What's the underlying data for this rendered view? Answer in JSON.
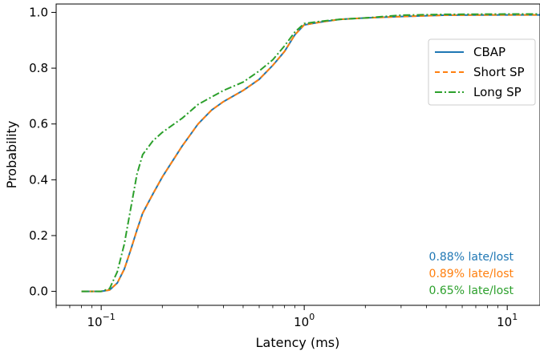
{
  "chart_data": {
    "type": "line",
    "xlabel": "Latency (ms)",
    "ylabel": "Probability",
    "xscale": "log",
    "xlim": [
      0.06,
      14.5
    ],
    "ylim": [
      -0.05,
      1.03
    ],
    "grid": false,
    "legend_position": "upper-right",
    "x_ticks": [
      {
        "value": 0.1,
        "base": "10",
        "exp": "−1"
      },
      {
        "value": 1,
        "base": "10",
        "exp": "0"
      },
      {
        "value": 10,
        "base": "10",
        "exp": "1"
      }
    ],
    "y_ticks": [
      {
        "value": 0.0,
        "label": "0.0"
      },
      {
        "value": 0.2,
        "label": "0.2"
      },
      {
        "value": 0.4,
        "label": "0.4"
      },
      {
        "value": 0.6,
        "label": "0.6"
      },
      {
        "value": 0.8,
        "label": "0.8"
      },
      {
        "value": 1.0,
        "label": "1.0"
      }
    ],
    "series": [
      {
        "name": "CBAP",
        "color": "#1f77b4",
        "style": "solid",
        "points": [
          [
            0.08,
            0
          ],
          [
            0.1,
            0
          ],
          [
            0.11,
            0.005
          ],
          [
            0.12,
            0.03
          ],
          [
            0.13,
            0.08
          ],
          [
            0.14,
            0.15
          ],
          [
            0.15,
            0.22
          ],
          [
            0.16,
            0.28
          ],
          [
            0.18,
            0.35
          ],
          [
            0.2,
            0.41
          ],
          [
            0.25,
            0.52
          ],
          [
            0.3,
            0.6
          ],
          [
            0.35,
            0.65
          ],
          [
            0.4,
            0.68
          ],
          [
            0.5,
            0.72
          ],
          [
            0.6,
            0.76
          ],
          [
            0.7,
            0.81
          ],
          [
            0.8,
            0.86
          ],
          [
            0.9,
            0.92
          ],
          [
            1.0,
            0.955
          ],
          [
            1.2,
            0.965
          ],
          [
            1.5,
            0.975
          ],
          [
            2.0,
            0.98
          ],
          [
            3.0,
            0.985
          ],
          [
            5.0,
            0.99
          ],
          [
            10,
            0.991
          ],
          [
            14.5,
            0.991
          ]
        ]
      },
      {
        "name": "Short SP",
        "color": "#ff7f0e",
        "style": "dashed",
        "points": [
          [
            0.08,
            0
          ],
          [
            0.1,
            0
          ],
          [
            0.11,
            0.005
          ],
          [
            0.12,
            0.03
          ],
          [
            0.13,
            0.08
          ],
          [
            0.14,
            0.15
          ],
          [
            0.15,
            0.22
          ],
          [
            0.16,
            0.28
          ],
          [
            0.18,
            0.35
          ],
          [
            0.2,
            0.41
          ],
          [
            0.25,
            0.52
          ],
          [
            0.3,
            0.6
          ],
          [
            0.35,
            0.65
          ],
          [
            0.4,
            0.68
          ],
          [
            0.5,
            0.72
          ],
          [
            0.6,
            0.76
          ],
          [
            0.7,
            0.81
          ],
          [
            0.8,
            0.86
          ],
          [
            0.9,
            0.92
          ],
          [
            1.0,
            0.955
          ],
          [
            1.2,
            0.965
          ],
          [
            1.5,
            0.975
          ],
          [
            2.0,
            0.98
          ],
          [
            3.0,
            0.985
          ],
          [
            5.0,
            0.99
          ],
          [
            10,
            0.991
          ],
          [
            14.5,
            0.991
          ]
        ]
      },
      {
        "name": "Long SP",
        "color": "#2ca02c",
        "style": "dashdot",
        "points": [
          [
            0.08,
            0
          ],
          [
            0.1,
            0
          ],
          [
            0.11,
            0.01
          ],
          [
            0.12,
            0.07
          ],
          [
            0.13,
            0.17
          ],
          [
            0.14,
            0.3
          ],
          [
            0.15,
            0.42
          ],
          [
            0.16,
            0.49
          ],
          [
            0.18,
            0.54
          ],
          [
            0.2,
            0.57
          ],
          [
            0.25,
            0.62
          ],
          [
            0.3,
            0.67
          ],
          [
            0.4,
            0.72
          ],
          [
            0.5,
            0.75
          ],
          [
            0.6,
            0.79
          ],
          [
            0.7,
            0.83
          ],
          [
            0.8,
            0.88
          ],
          [
            0.9,
            0.93
          ],
          [
            1.0,
            0.96
          ],
          [
            1.2,
            0.968
          ],
          [
            1.5,
            0.975
          ],
          [
            2.0,
            0.98
          ],
          [
            3.0,
            0.99
          ],
          [
            5.0,
            0.993
          ],
          [
            10,
            0.994
          ],
          [
            14.5,
            0.994
          ]
        ]
      }
    ],
    "annotations": [
      {
        "text": "0.88% late/lost",
        "color": "#1f77b4"
      },
      {
        "text": "0.89% late/lost",
        "color": "#ff7f0e"
      },
      {
        "text": "0.65% late/lost",
        "color": "#2ca02c"
      }
    ]
  }
}
